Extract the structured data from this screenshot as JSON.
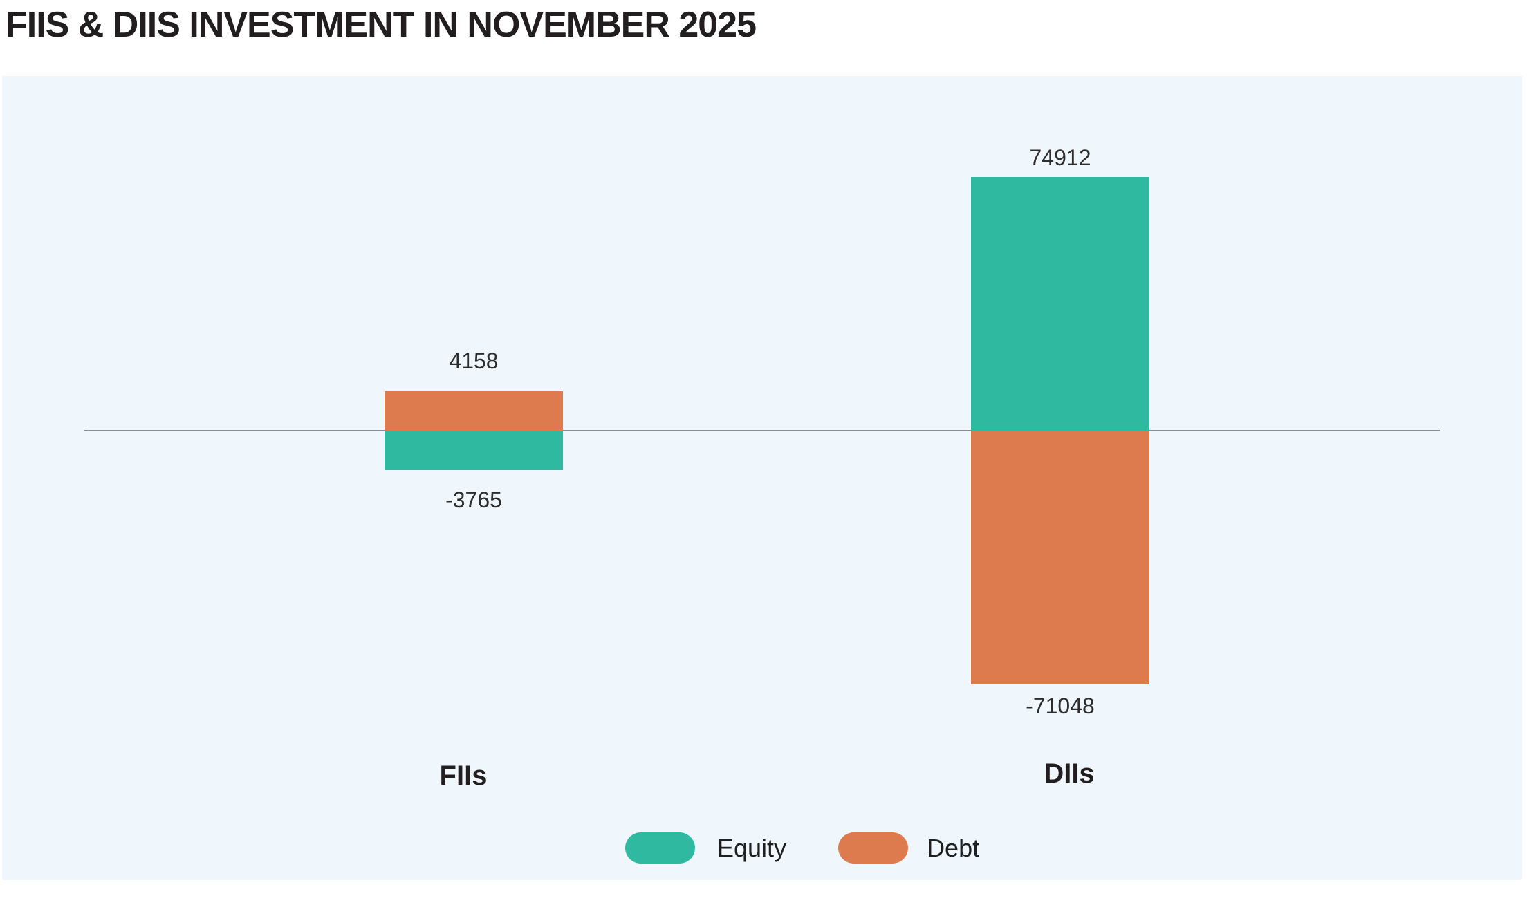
{
  "page": {
    "title": "FIIS & DIIS INVESTMENT IN NOVEMBER 2025"
  },
  "chart_data": {
    "type": "bar",
    "title": "FIIS & DIIS INVESTMENT IN NOVEMBER 2025",
    "categories": [
      "FIIs",
      "DIIs"
    ],
    "series": [
      {
        "name": "Equity",
        "color": "#2fb9a1",
        "values": [
          -3765,
          74912
        ]
      },
      {
        "name": "Debt",
        "color": "#dd7b4f",
        "values": [
          4158,
          -71048
        ]
      }
    ],
    "value_labels": {
      "FIIs": {
        "Debt": "4158",
        "Equity": "-3765"
      },
      "DIIs": {
        "Equity": "74912",
        "Debt": "-71048"
      }
    },
    "orientation": "vertical",
    "bars_overlap_same_x": true,
    "zero_axis_line": true,
    "zero_axis_color": "#8b8f94",
    "grid": false,
    "legend_position": "bottom",
    "legend_items": [
      "Equity",
      "Debt"
    ],
    "panel_background": "#f0f7fc",
    "page_background": "#ffffff"
  },
  "labels": {
    "value_fiis_debt": "4158",
    "value_fiis_equity": "-3765",
    "value_diis_equity": "74912",
    "value_diis_debt": "-71048",
    "category_fiis": "FIIs",
    "category_diis": "DIIs",
    "legend_equity": "Equity",
    "legend_debt": "Debt"
  }
}
